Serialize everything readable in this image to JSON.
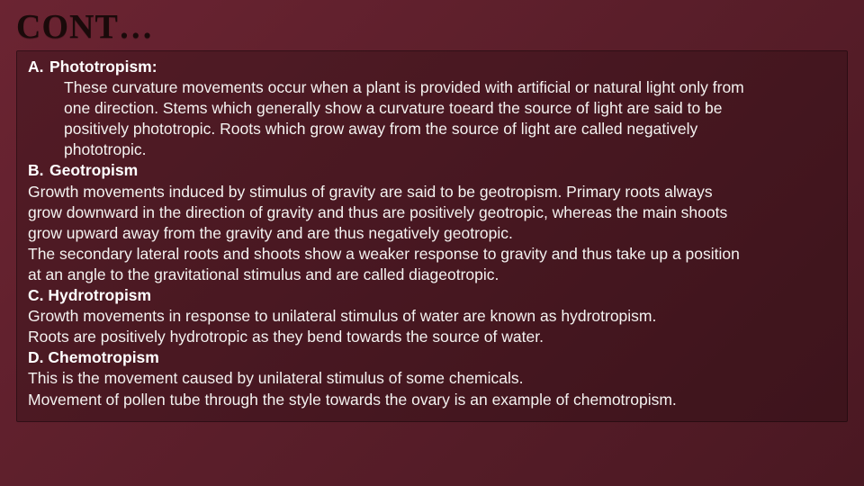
{
  "slide": {
    "title": "CONT…",
    "title_fontsize": 38,
    "title_color": "#1a0a0a",
    "background_gradient": [
      "#6b2432",
      "#5a1e2a",
      "#4a1822"
    ],
    "content_box_bg": "rgba(30,10,14,0.3)",
    "content_box_border": "rgba(0,0,0,0.35)",
    "text_color": "#f4f2f0",
    "body_fontsize": 17.5,
    "lines": [
      {
        "marker": "A.",
        "head": "Phototropism:",
        "indent": 1,
        "bold": true
      },
      {
        "text": "These curvature movements occur when a plant is provided with artificial or natural light only from",
        "indent": 2
      },
      {
        "text": "one direction. Stems which generally show a curvature toeard the source of light are said to be",
        "indent": 2
      },
      {
        "text": "positively phototropic. Roots which grow away from the source of light are called negatively",
        "indent": 2
      },
      {
        "text": "phototropic.",
        "indent": 2
      },
      {
        "marker": "B.",
        "head": "Geotropism",
        "indent": 1,
        "bold": true
      },
      {
        "text": "Growth movements induced by stimulus of gravity are said to be geotropism. Primary roots always",
        "indent": 1
      },
      {
        "text": "grow downward in the direction of gravity and thus are positively geotropic, whereas the main shoots",
        "indent": 1
      },
      {
        "text": "grow upward away from the gravity and are thus negatively geotropic.",
        "indent": 1
      },
      {
        "text": "The secondary lateral roots and shoots show a weaker response to gravity and thus take up a position",
        "indent": 1
      },
      {
        "text": "at an angle to the gravitational stimulus and are called diageotropic.",
        "indent": 1
      },
      {
        "head": "C. Hydrotropism",
        "indent": 1,
        "bold": true
      },
      {
        "text": "Growth movements in response to unilateral stimulus of water are known as hydrotropism.",
        "indent": 1
      },
      {
        "text": "Roots are positively hydrotropic as they bend towards the source of water.",
        "indent": 1
      },
      {
        "head": "D. Chemotropism",
        "indent": 1,
        "bold": true
      },
      {
        "text": "This is the movement caused by unilateral stimulus of some chemicals.",
        "indent": 1
      },
      {
        "text": "Movement of pollen tube through the style towards the ovary is an example of chemotropism.",
        "indent": 1
      }
    ]
  }
}
